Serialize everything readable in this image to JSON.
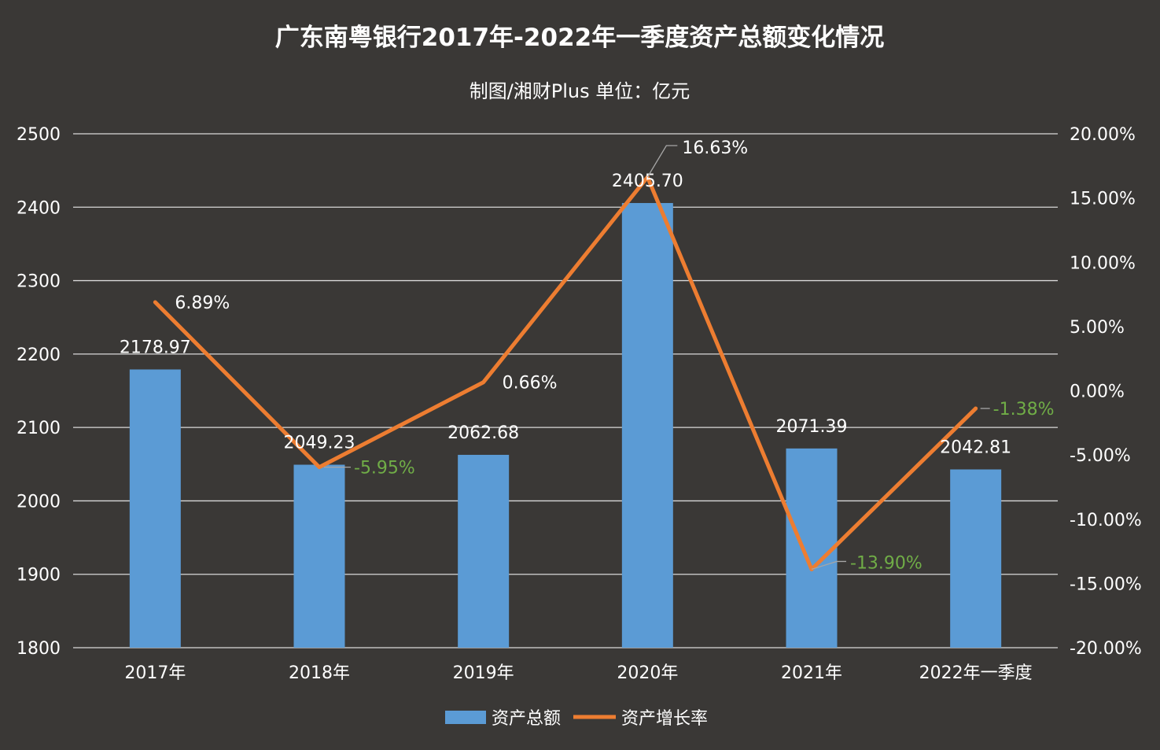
{
  "chart_data": {
    "type": "bar",
    "title": "广东南粤银行2017年-2022年一季度资产总额变化情况",
    "subtitle": "制图/湘财Plus 单位：亿元",
    "categories": [
      "2017年",
      "2018年",
      "2019年",
      "2020年",
      "2021年",
      "2022年一季度"
    ],
    "series": [
      {
        "name": "资产总额",
        "type": "bar",
        "axis": "left",
        "color": "#5b9bd5",
        "values": [
          2178.97,
          2049.23,
          2062.68,
          2405.7,
          2071.39,
          2042.81
        ],
        "labels": [
          "2178.97",
          "2049.23",
          "2062.68",
          "2405.70",
          "2071.39",
          "2042.81"
        ]
      },
      {
        "name": "资产增长率",
        "type": "line",
        "axis": "right",
        "color": "#ed7d31",
        "values": [
          6.89,
          -5.95,
          0.66,
          16.63,
          -13.9,
          -1.38
        ],
        "labels": [
          "6.89%",
          "-5.95%",
          "0.66%",
          "16.63%",
          "-13.90%",
          "-1.38%"
        ]
      }
    ],
    "y_left": {
      "min": 1800,
      "max": 2500,
      "ticks": [
        "2500",
        "2400",
        "2300",
        "2200",
        "2100",
        "2000",
        "1900",
        "1800"
      ]
    },
    "y_right": {
      "min": -20,
      "max": 20,
      "ticks": [
        "20.00%",
        "15.00%",
        "10.00%",
        "5.00%",
        "0.00%",
        "-5.00%",
        "-10.00%",
        "-15.00%",
        "-20.00%"
      ]
    },
    "grid": true,
    "legend_position": "bottom",
    "colors": {
      "background": "#3a3836",
      "grid": "#d9d9d9",
      "text": "#ffffff",
      "negative_label": "#70ad47",
      "leader_line": "#a6a6a6"
    }
  }
}
